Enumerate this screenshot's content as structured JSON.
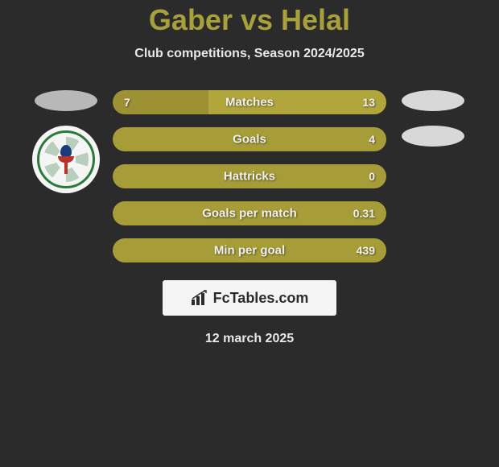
{
  "header": {
    "title": "Gaber vs Helal",
    "subtitle": "Club competitions, Season 2024/2025"
  },
  "colors": {
    "title_color": "#a8a03a",
    "text_light": "#e8e8e8",
    "background": "#2b2b2b",
    "bar_left_fill": "#a69c38",
    "bar_right_fill": "#a69c38",
    "bar_right_muted": "#5a5832",
    "ellipse_left": "#b8b8b8",
    "ellipse_right": "#d8d8d8"
  },
  "rows": [
    {
      "label": "Matches",
      "left_val": "7",
      "right_val": "13",
      "left_pct": 35,
      "left_color": "#9c9234",
      "right_color": "#b0a63c"
    },
    {
      "label": "Goals",
      "left_val": "",
      "right_val": "4",
      "left_pct": 0,
      "left_color": "#a69c38",
      "right_color": "#a69c38"
    },
    {
      "label": "Hattricks",
      "left_val": "",
      "right_val": "0",
      "left_pct": 0,
      "left_color": "#a69c38",
      "right_color": "#a69c38"
    },
    {
      "label": "Goals per match",
      "left_val": "",
      "right_val": "0.31",
      "left_pct": 0,
      "left_color": "#a69c38",
      "right_color": "#a69c38"
    },
    {
      "label": "Min per goal",
      "left_val": "",
      "right_val": "439",
      "left_pct": 0,
      "left_color": "#a69c38",
      "right_color": "#a69c38"
    }
  ],
  "footer": {
    "logo_text": "FcTables.com",
    "date": "12 march 2025"
  }
}
